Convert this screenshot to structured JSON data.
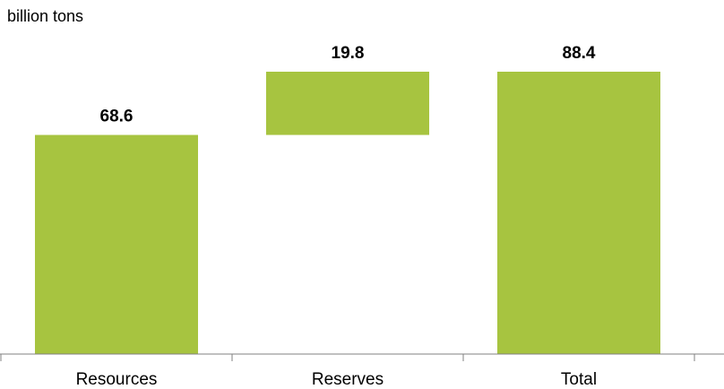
{
  "chart_data": {
    "type": "bar",
    "subtype": "waterfall",
    "title": "",
    "ylabel": "billion tons",
    "xlabel": "",
    "categories": [
      "Resources",
      "Reserves",
      "Total"
    ],
    "series": [
      {
        "values": [
          68.6,
          19.8,
          88.4
        ],
        "bases": [
          0,
          68.6,
          0
        ],
        "labels": [
          "68.6",
          "19.8",
          "88.4"
        ]
      }
    ],
    "ylim": [
      0,
      100
    ],
    "grid": false,
    "legend": "none",
    "colors": {
      "bar": "#a7c440",
      "axis": "#808080",
      "text": "#000000"
    }
  }
}
